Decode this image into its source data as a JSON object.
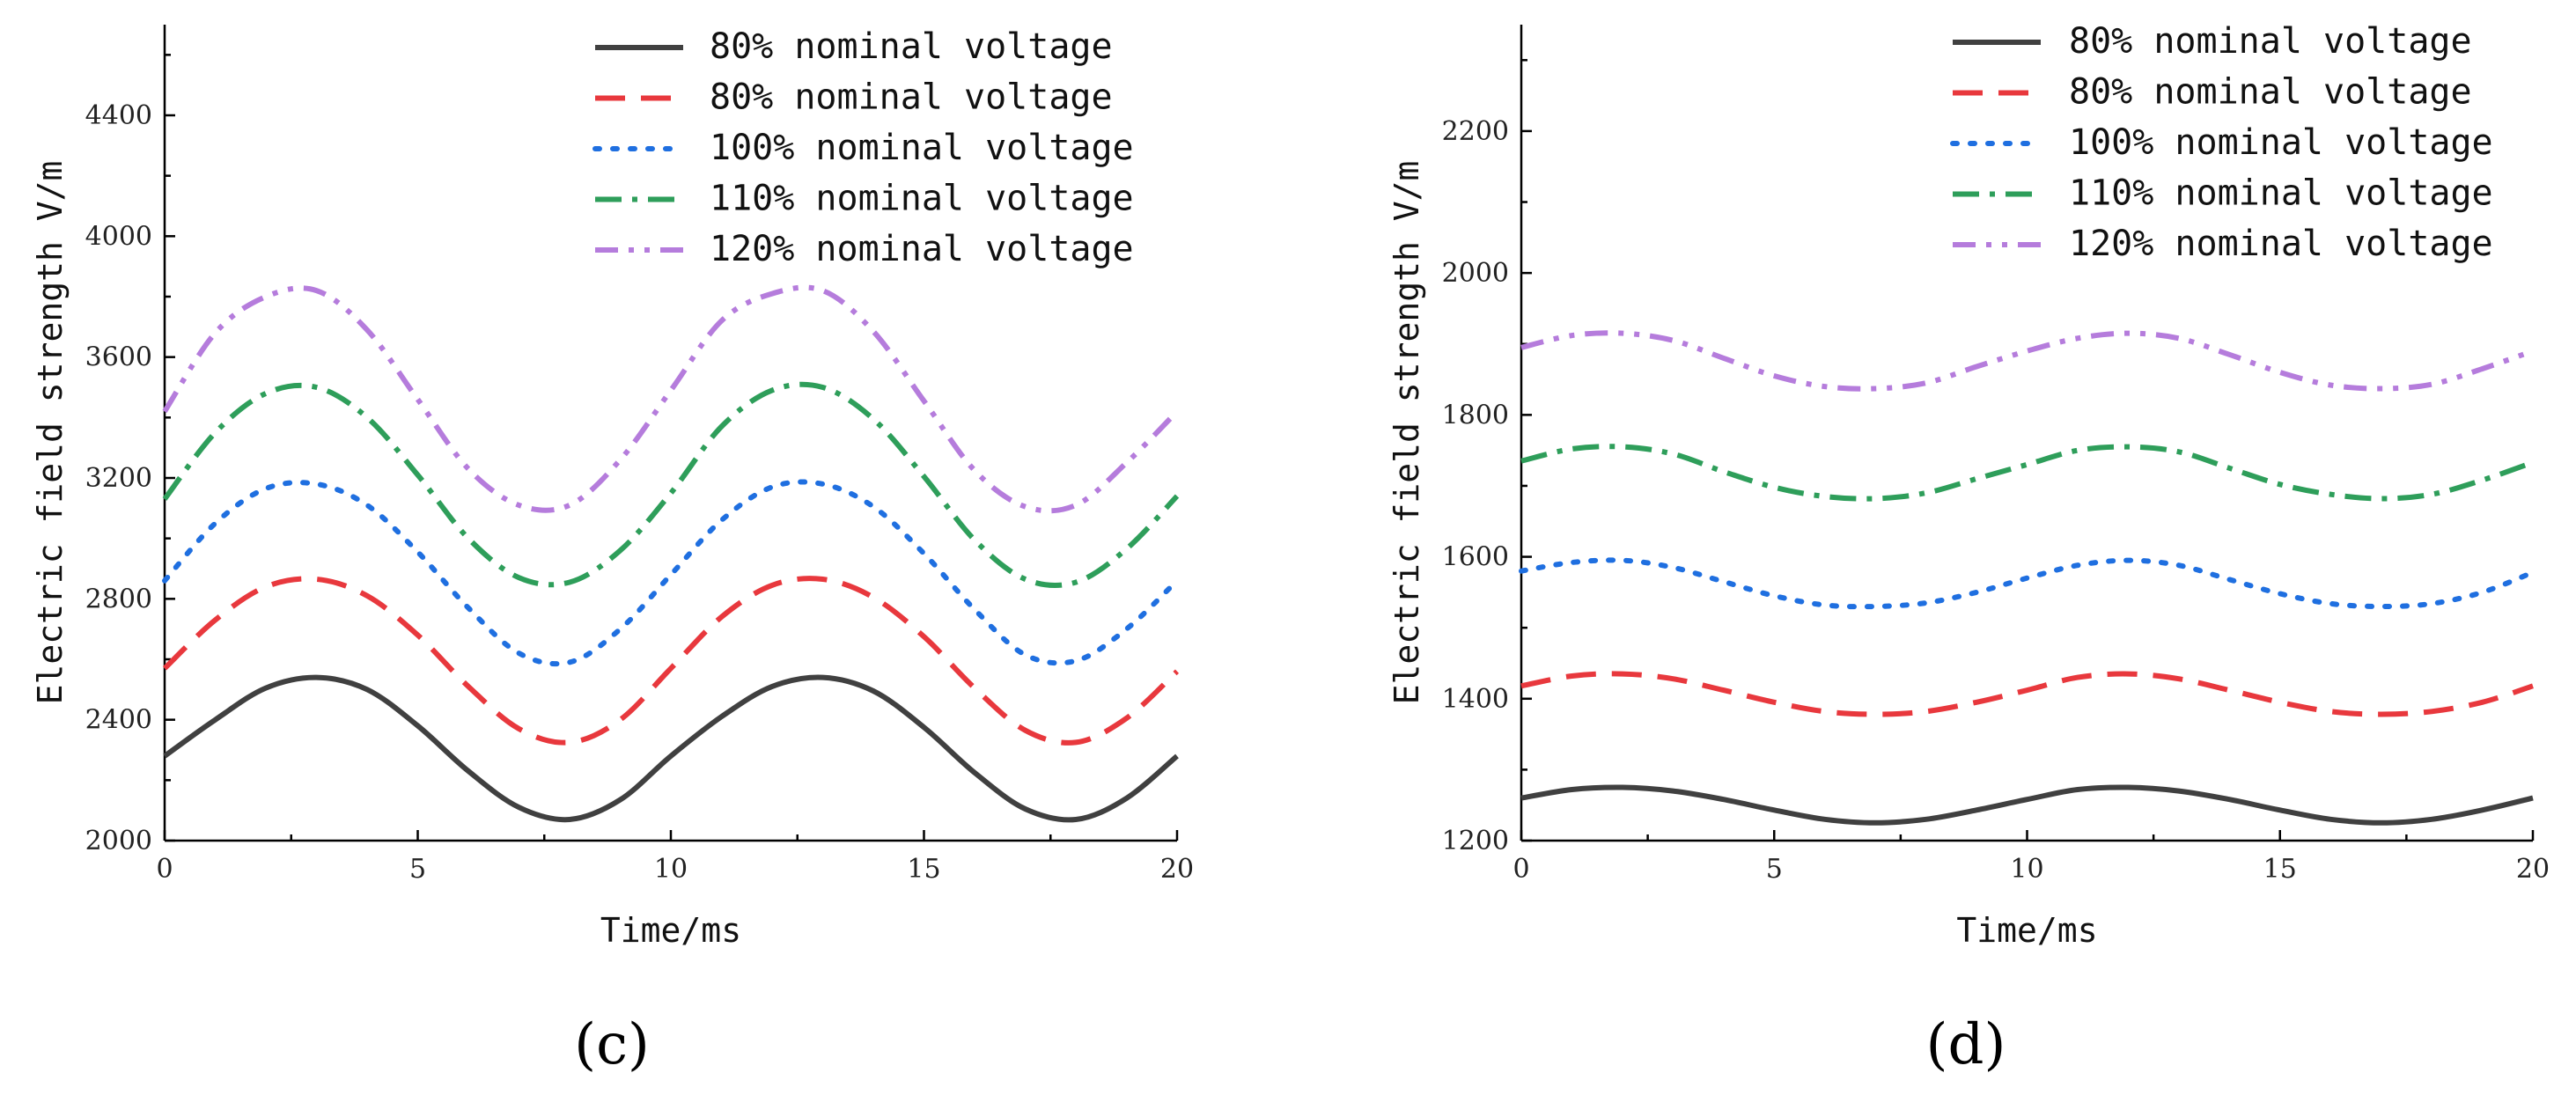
{
  "chart_data": [
    {
      "type": "line",
      "panel_label": "(c)",
      "xlabel": "Time/ms",
      "ylabel": "Electric field strength V/m",
      "xlim": [
        0,
        20
      ],
      "ylim": [
        2000,
        4700
      ],
      "xticks": [
        0,
        5,
        10,
        15,
        20
      ],
      "yticks": [
        2000,
        2400,
        2800,
        3200,
        3600,
        4000,
        4400
      ],
      "grid": false,
      "legend_position": "top-right",
      "x": [
        0,
        1,
        2,
        3,
        4,
        5,
        6,
        7,
        8,
        9,
        10,
        11,
        12,
        13,
        14,
        15,
        16,
        17,
        18,
        19,
        20
      ],
      "series": [
        {
          "name": "80% nominal voltage",
          "color": "#404040",
          "style": "solid",
          "values": [
            2280,
            2400,
            2505,
            2540,
            2500,
            2380,
            2230,
            2110,
            2070,
            2135,
            2280,
            2410,
            2510,
            2540,
            2495,
            2375,
            2225,
            2105,
            2070,
            2140,
            2280
          ]
        },
        {
          "name": "80% nominal voltage",
          "color": "#e8383d",
          "style": "dash",
          "values": [
            2570,
            2730,
            2840,
            2865,
            2810,
            2680,
            2510,
            2370,
            2325,
            2400,
            2570,
            2740,
            2845,
            2865,
            2805,
            2675,
            2505,
            2365,
            2325,
            2405,
            2560
          ]
        },
        {
          "name": "100% nominal voltage",
          "color": "#1f6fe0",
          "style": "dot",
          "values": [
            2860,
            3050,
            3165,
            3180,
            3110,
            2955,
            2770,
            2620,
            2590,
            2700,
            2880,
            3060,
            3170,
            3180,
            3105,
            2950,
            2765,
            2615,
            2595,
            2700,
            2860
          ]
        },
        {
          "name": "110% nominal voltage",
          "color": "#2e9e5a",
          "style": "dashdot",
          "values": [
            3130,
            3350,
            3480,
            3500,
            3400,
            3210,
            3000,
            2870,
            2855,
            2960,
            3150,
            3370,
            3490,
            3500,
            3395,
            3205,
            2995,
            2865,
            2855,
            2965,
            3140
          ]
        },
        {
          "name": "120% nominal voltage",
          "color": "#b57cdc",
          "style": "dashdotdot",
          "values": [
            3420,
            3680,
            3800,
            3820,
            3690,
            3460,
            3230,
            3110,
            3110,
            3260,
            3490,
            3720,
            3810,
            3820,
            3685,
            3455,
            3225,
            3105,
            3110,
            3250,
            3420
          ]
        }
      ]
    },
    {
      "type": "line",
      "panel_label": "(d)",
      "xlabel": "Time/ms",
      "ylabel": "Electric field strength V/m",
      "xlim": [
        0,
        20
      ],
      "ylim": [
        1200,
        2350
      ],
      "xticks": [
        0,
        5,
        10,
        15,
        20
      ],
      "yticks": [
        1200,
        1400,
        1600,
        1800,
        2000,
        2200
      ],
      "grid": false,
      "legend_position": "top-right",
      "x": [
        0,
        1,
        2,
        3,
        4,
        5,
        6,
        7,
        8,
        9,
        10,
        11,
        12,
        13,
        14,
        15,
        16,
        17,
        18,
        19,
        20
      ],
      "series": [
        {
          "name": "80% nominal voltage",
          "color": "#404040",
          "style": "solid",
          "values": [
            1260,
            1272,
            1275,
            1270,
            1258,
            1243,
            1230,
            1225,
            1230,
            1243,
            1258,
            1272,
            1275,
            1270,
            1258,
            1243,
            1230,
            1225,
            1230,
            1243,
            1260
          ]
        },
        {
          "name": "80% nominal voltage",
          "color": "#e8383d",
          "style": "dash",
          "values": [
            1418,
            1432,
            1435,
            1428,
            1412,
            1395,
            1382,
            1378,
            1382,
            1395,
            1412,
            1430,
            1435,
            1428,
            1412,
            1395,
            1382,
            1378,
            1382,
            1395,
            1418
          ]
        },
        {
          "name": "100% nominal voltage",
          "color": "#1f6fe0",
          "style": "dot",
          "values": [
            1580,
            1592,
            1595,
            1585,
            1565,
            1545,
            1532,
            1530,
            1535,
            1550,
            1570,
            1588,
            1595,
            1588,
            1568,
            1548,
            1534,
            1530,
            1534,
            1550,
            1578
          ]
        },
        {
          "name": "110% nominal voltage",
          "color": "#2e9e5a",
          "style": "dashdot",
          "values": [
            1735,
            1752,
            1755,
            1745,
            1720,
            1698,
            1685,
            1682,
            1690,
            1710,
            1730,
            1750,
            1755,
            1748,
            1725,
            1702,
            1688,
            1682,
            1688,
            1708,
            1733
          ]
        },
        {
          "name": "120% nominal voltage",
          "color": "#b57cdc",
          "style": "dashdotdot",
          "values": [
            1895,
            1912,
            1915,
            1905,
            1880,
            1855,
            1840,
            1837,
            1845,
            1868,
            1890,
            1908,
            1915,
            1908,
            1885,
            1860,
            1842,
            1837,
            1843,
            1865,
            1890
          ]
        }
      ]
    }
  ]
}
